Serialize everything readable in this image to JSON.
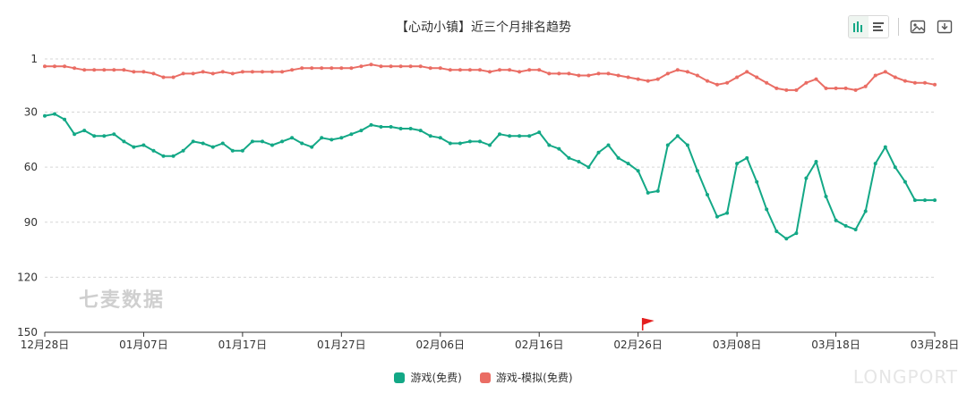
{
  "header": {
    "title": "【心动小镇】近三个月排名趋势"
  },
  "toolbar": {
    "icons": [
      "bar-chart-icon",
      "list-icon",
      "image-icon",
      "download-icon"
    ]
  },
  "watermark": "七麦数据",
  "brand_watermark": "LONGPORT",
  "colors": {
    "free": "#13a886",
    "sim": "#ea6d64",
    "grid": "#d6d6d6",
    "axis": "#333333"
  },
  "chart_data": {
    "type": "line",
    "title": "【心动小镇】近三个月排名趋势",
    "x_tick_labels": [
      "12月28日",
      "01月07日",
      "01月17日",
      "01月27日",
      "02月06日",
      "02月16日",
      "02月26日",
      "03月08日",
      "03月18日",
      "03月28日"
    ],
    "y_tick_labels": [
      "1",
      "30",
      "60",
      "90",
      "120",
      "150"
    ],
    "ylim": [
      150,
      1
    ],
    "y_inverted": true,
    "grid": "horizontal dashed",
    "legend_position": "bottom",
    "marker": {
      "label": "flag",
      "x_index": 61
    },
    "series": [
      {
        "name": "游戏(免费)",
        "color": "#13a886",
        "values": [
          32,
          31,
          34,
          42,
          40,
          43,
          43,
          42,
          46,
          49,
          48,
          51,
          54,
          54,
          51,
          46,
          47,
          49,
          47,
          51,
          51,
          46,
          46,
          48,
          46,
          44,
          47,
          49,
          44,
          45,
          44,
          42,
          40,
          37,
          38,
          38,
          39,
          39,
          40,
          43,
          44,
          47,
          47,
          46,
          46,
          48,
          42,
          43,
          43,
          43,
          41,
          48,
          50,
          55,
          57,
          60,
          52,
          48,
          55,
          58,
          62,
          74,
          73,
          48,
          43,
          48,
          62,
          75,
          87,
          85,
          58,
          55,
          68,
          83,
          95,
          99,
          96,
          66,
          57,
          76,
          89,
          92,
          94,
          84,
          58,
          49,
          60,
          68,
          78,
          78,
          78
        ]
      },
      {
        "name": "游戏-模拟(免费)",
        "color": "#ea6d64",
        "values": [
          5,
          5,
          5,
          6,
          7,
          7,
          7,
          7,
          7,
          8,
          8,
          9,
          11,
          11,
          9,
          9,
          8,
          9,
          8,
          9,
          8,
          8,
          8,
          8,
          8,
          7,
          6,
          6,
          6,
          6,
          6,
          6,
          5,
          4,
          5,
          5,
          5,
          5,
          5,
          6,
          6,
          7,
          7,
          7,
          7,
          8,
          7,
          7,
          8,
          7,
          7,
          9,
          9,
          9,
          10,
          10,
          9,
          9,
          10,
          11,
          12,
          13,
          12,
          9,
          7,
          8,
          10,
          13,
          15,
          14,
          11,
          8,
          11,
          14,
          17,
          18,
          18,
          14,
          12,
          17,
          17,
          17,
          18,
          16,
          10,
          8,
          11,
          13,
          14,
          14,
          15
        ]
      }
    ]
  }
}
